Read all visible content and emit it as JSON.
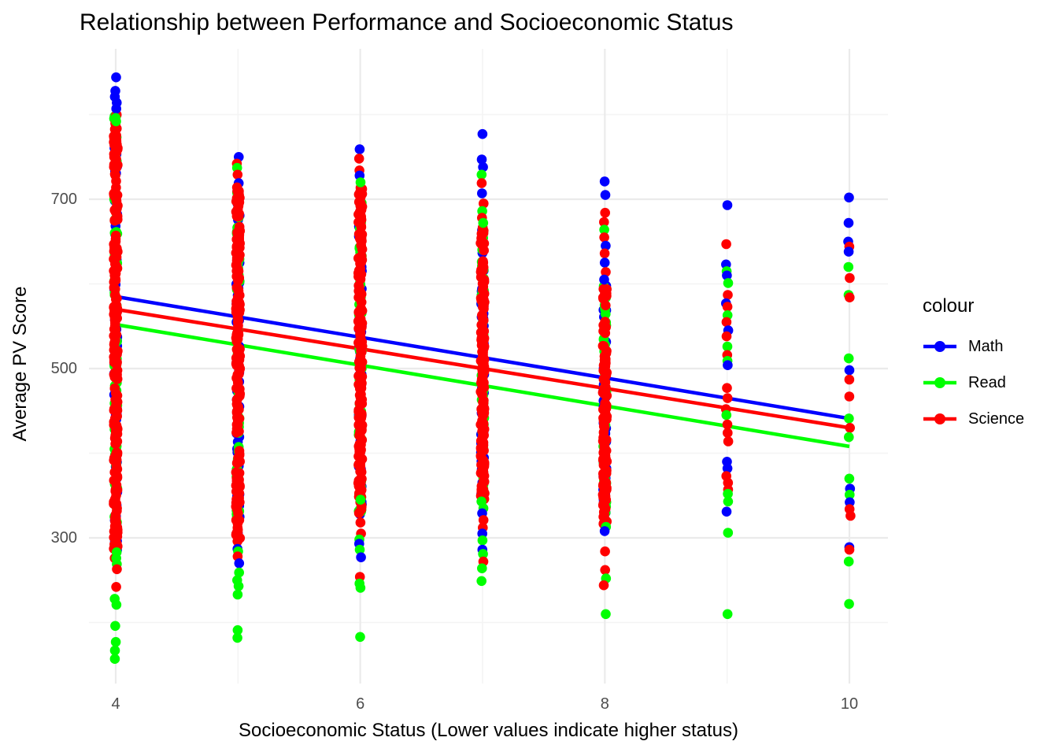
{
  "chart_data": {
    "type": "scatter",
    "title": "Relationship between Performance and Socioeconomic Status",
    "x_axis": {
      "label": "Socioeconomic Status (Lower values indicate higher status)",
      "ticks": [
        4,
        6,
        8,
        10
      ],
      "minor_ticks": [
        5,
        7,
        9
      ],
      "range": [
        3.78,
        10.31
      ]
    },
    "y_axis": {
      "label": "Average PV Score",
      "ticks": [
        300,
        500,
        700
      ],
      "minor_ticks": [
        200,
        400,
        600,
        800
      ],
      "range": [
        143,
        877
      ]
    },
    "colors": {
      "background": "#FFFFFF",
      "grid_major": "#EBEBEB",
      "grid_minor": "#F4F4F4",
      "tick_text": "#4D4D4D",
      "title_text": "#000000"
    },
    "series_colors": {
      "Math": "#0000FF",
      "Read": "#00FF00",
      "Science": "#FF0000"
    },
    "legend": {
      "title": "colour",
      "position": "right",
      "entries": [
        {
          "label": "Math",
          "color": "#0000FF"
        },
        {
          "label": "Read",
          "color": "#00FF00"
        },
        {
          "label": "Science",
          "color": "#FF0000"
        }
      ]
    },
    "regression_lines": [
      {
        "name": "Math",
        "x": [
          4,
          10
        ],
        "y": [
          585,
          441
        ]
      },
      {
        "name": "Science",
        "x": [
          4,
          10
        ],
        "y": [
          570,
          430
        ]
      },
      {
        "name": "Read",
        "x": [
          4,
          10
        ],
        "y": [
          552,
          408
        ]
      }
    ],
    "columns": [
      {
        "x": 4,
        "dense": {
          "min": 283,
          "max": 800,
          "n": {
            "Math": 70,
            "Read": 70,
            "Science": 230
          }
        },
        "points": [
          [
            "Math",
            844
          ],
          [
            "Math",
            828
          ],
          [
            "Math",
            821
          ],
          [
            "Math",
            814
          ],
          [
            "Math",
            807
          ],
          [
            "Read",
            796
          ],
          [
            "Read",
            792
          ],
          [
            "Science",
            276
          ],
          [
            "Read",
            283
          ],
          [
            "Read",
            276
          ],
          [
            "Read",
            269
          ],
          [
            "Science",
            263
          ],
          [
            "Science",
            242
          ],
          [
            "Read",
            228
          ],
          [
            "Read",
            221
          ],
          [
            "Read",
            196
          ],
          [
            "Read",
            177
          ],
          [
            "Read",
            167
          ],
          [
            "Read",
            157
          ]
        ]
      },
      {
        "x": 5,
        "dense": {
          "min": 299,
          "max": 710,
          "n": {
            "Math": 55,
            "Read": 55,
            "Science": 190
          }
        },
        "points": [
          [
            "Math",
            750
          ],
          [
            "Science",
            742
          ],
          [
            "Read",
            737
          ],
          [
            "Science",
            729
          ],
          [
            "Math",
            719
          ],
          [
            "Science",
            714
          ],
          [
            "Science",
            296
          ],
          [
            "Math",
            287
          ],
          [
            "Read",
            284
          ],
          [
            "Science",
            278
          ],
          [
            "Math",
            270
          ],
          [
            "Read",
            259
          ],
          [
            "Read",
            250
          ],
          [
            "Read",
            243
          ],
          [
            "Read",
            233
          ],
          [
            "Read",
            191
          ],
          [
            "Read",
            182
          ]
        ]
      },
      {
        "x": 6,
        "dense": {
          "min": 326,
          "max": 714,
          "n": {
            "Math": 55,
            "Read": 55,
            "Science": 190
          }
        },
        "points": [
          [
            "Math",
            759
          ],
          [
            "Science",
            748
          ],
          [
            "Science",
            734
          ],
          [
            "Math",
            728
          ],
          [
            "Read",
            720
          ],
          [
            "Read",
            345
          ],
          [
            "Science",
            330
          ],
          [
            "Science",
            318
          ],
          [
            "Science",
            305
          ],
          [
            "Read",
            298
          ],
          [
            "Math",
            293
          ],
          [
            "Read",
            286
          ],
          [
            "Math",
            277
          ],
          [
            "Science",
            254
          ],
          [
            "Read",
            246
          ],
          [
            "Read",
            241
          ],
          [
            "Read",
            183
          ]
        ]
      },
      {
        "x": 7,
        "dense": {
          "min": 343,
          "max": 668,
          "n": {
            "Math": 45,
            "Read": 45,
            "Science": 150
          }
        },
        "points": [
          [
            "Math",
            777
          ],
          [
            "Math",
            747
          ],
          [
            "Math",
            738
          ],
          [
            "Read",
            729
          ],
          [
            "Science",
            719
          ],
          [
            "Math",
            707
          ],
          [
            "Science",
            695
          ],
          [
            "Read",
            686
          ],
          [
            "Science",
            678
          ],
          [
            "Read",
            672
          ],
          [
            "Read",
            343
          ],
          [
            "Read",
            335
          ],
          [
            "Math",
            329
          ],
          [
            "Science",
            321
          ],
          [
            "Science",
            312
          ],
          [
            "Math",
            305
          ],
          [
            "Read",
            297
          ],
          [
            "Math",
            286
          ],
          [
            "Read",
            281
          ],
          [
            "Science",
            272
          ],
          [
            "Read",
            264
          ],
          [
            "Read",
            249
          ]
        ]
      },
      {
        "x": 8,
        "dense": {
          "min": 315,
          "max": 598,
          "n": {
            "Math": 40,
            "Read": 40,
            "Science": 130
          }
        },
        "points": [
          [
            "Math",
            721
          ],
          [
            "Math",
            705
          ],
          [
            "Science",
            684
          ],
          [
            "Science",
            673
          ],
          [
            "Read",
            664
          ],
          [
            "Science",
            655
          ],
          [
            "Math",
            645
          ],
          [
            "Science",
            636
          ],
          [
            "Math",
            625
          ],
          [
            "Science",
            614
          ],
          [
            "Math",
            605
          ],
          [
            "Read",
            313
          ],
          [
            "Math",
            308
          ],
          [
            "Science",
            284
          ],
          [
            "Science",
            262
          ],
          [
            "Read",
            252
          ],
          [
            "Science",
            244
          ],
          [
            "Read",
            210
          ]
        ]
      },
      {
        "x": 9,
        "dense": null,
        "points": [
          [
            "Math",
            693
          ],
          [
            "Science",
            647
          ],
          [
            "Math",
            623
          ],
          [
            "Read",
            615
          ],
          [
            "Math",
            610
          ],
          [
            "Read",
            601
          ],
          [
            "Science",
            587
          ],
          [
            "Math",
            577
          ],
          [
            "Science",
            573
          ],
          [
            "Read",
            563
          ],
          [
            "Science",
            555
          ],
          [
            "Math",
            545
          ],
          [
            "Science",
            538
          ],
          [
            "Read",
            526
          ],
          [
            "Science",
            516
          ],
          [
            "Read",
            509
          ],
          [
            "Math",
            504
          ],
          [
            "Science",
            477
          ],
          [
            "Science",
            465
          ],
          [
            "Science",
            452
          ],
          [
            "Read",
            445
          ],
          [
            "Science",
            434
          ],
          [
            "Science",
            424
          ],
          [
            "Science",
            414
          ],
          [
            "Math",
            390
          ],
          [
            "Math",
            382
          ],
          [
            "Science",
            373
          ],
          [
            "Science",
            365
          ],
          [
            "Science",
            357
          ],
          [
            "Read",
            352
          ],
          [
            "Read",
            343
          ],
          [
            "Math",
            331
          ],
          [
            "Read",
            306
          ],
          [
            "Read",
            210
          ]
        ]
      },
      {
        "x": 10,
        "dense": null,
        "points": [
          [
            "Math",
            702
          ],
          [
            "Math",
            672
          ],
          [
            "Math",
            650
          ],
          [
            "Science",
            644
          ],
          [
            "Math",
            638
          ],
          [
            "Read",
            620
          ],
          [
            "Science",
            607
          ],
          [
            "Read",
            587
          ],
          [
            "Science",
            584
          ],
          [
            "Read",
            512
          ],
          [
            "Math",
            498
          ],
          [
            "Science",
            487
          ],
          [
            "Science",
            467
          ],
          [
            "Read",
            441
          ],
          [
            "Science",
            430
          ],
          [
            "Read",
            419
          ],
          [
            "Read",
            370
          ],
          [
            "Math",
            358
          ],
          [
            "Read",
            351
          ],
          [
            "Math",
            342
          ],
          [
            "Science",
            334
          ],
          [
            "Science",
            326
          ],
          [
            "Math",
            289
          ],
          [
            "Science",
            286
          ],
          [
            "Read",
            272
          ],
          [
            "Read",
            222
          ]
        ]
      }
    ]
  }
}
